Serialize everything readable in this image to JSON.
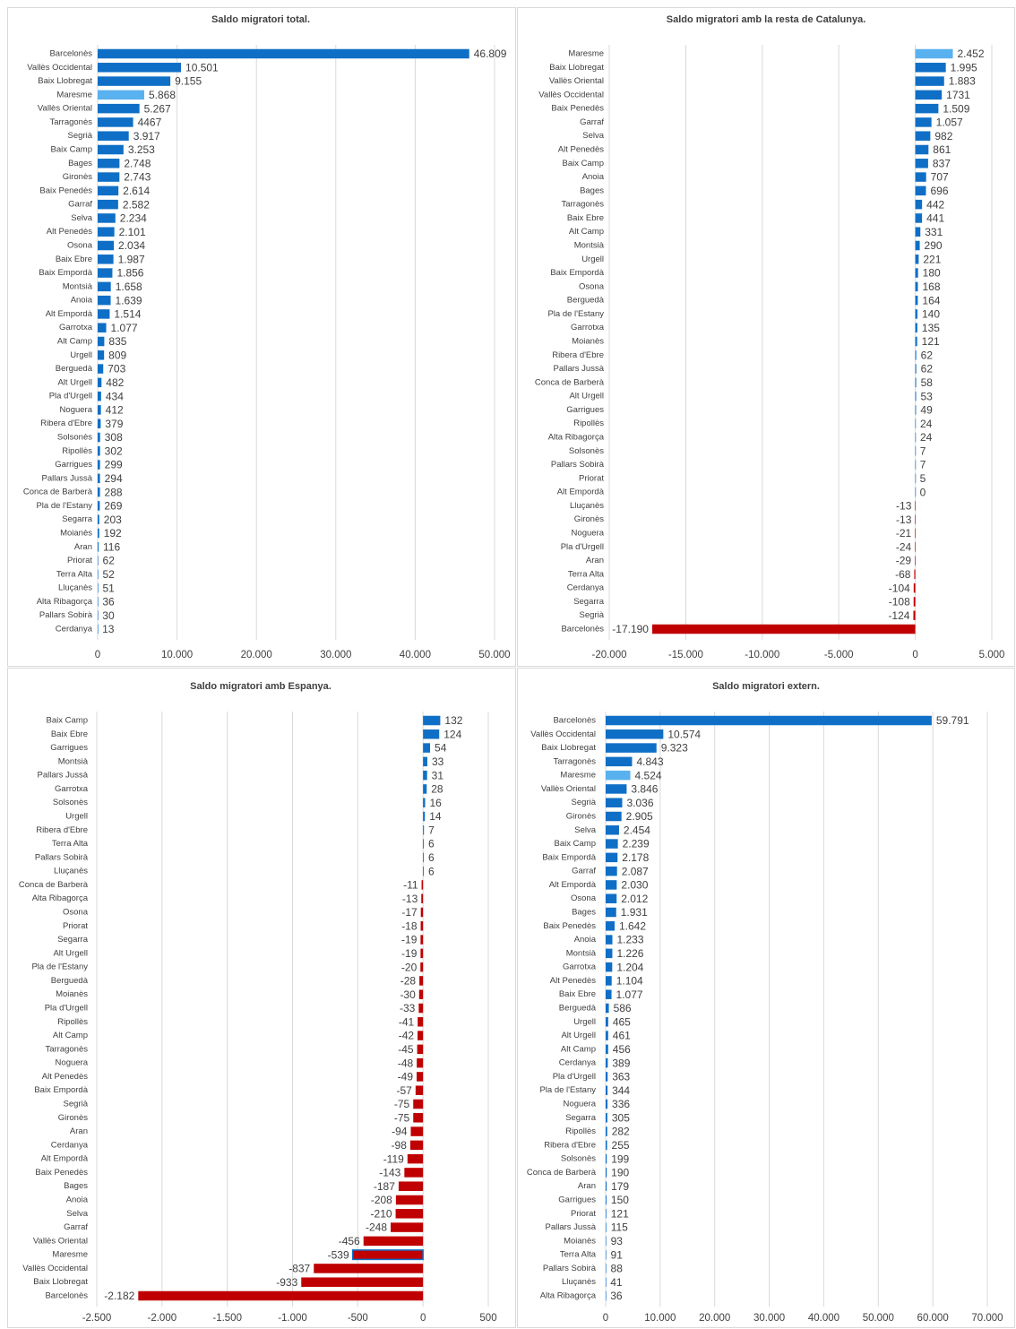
{
  "chart_data": [
    {
      "type": "bar",
      "orientation": "horizontal",
      "title": "Saldo migratori total.",
      "categories": [
        "Barcelonès",
        "Vallès Occidental",
        "Baix Llobregat",
        "Maresme",
        "Vallès Oriental",
        "Tarragonès",
        "Segrià",
        "Baix Camp",
        "Bages",
        "Gironès",
        "Baix Penedès",
        "Garraf",
        "Selva",
        "Alt Penedès",
        "Osona",
        "Baix Ebre",
        "Baix Empordà",
        "Montsià",
        "Anoia",
        "Alt Empordà",
        "Garrotxa",
        "Alt Camp",
        "Urgell",
        "Berguedà",
        "Alt Urgell",
        "Pla d'Urgell",
        "Noguera",
        "Ribera d'Ebre",
        "Solsonès",
        "Ripollès",
        "Garrigues",
        "Pallars Jussà",
        "Conca de Barberà",
        "Pla de l'Estany",
        "Segarra",
        "Moianès",
        "Aran",
        "Priorat",
        "Terra Alta",
        "Lluçanès",
        "Alta Ribagorça",
        "Pallars Sobirà",
        "Cerdanya"
      ],
      "values": [
        46809,
        10501,
        9155,
        5868,
        5267,
        4467,
        3917,
        3253,
        2748,
        2743,
        2614,
        2582,
        2234,
        2101,
        2034,
        1987,
        1856,
        1658,
        1639,
        1514,
        1077,
        835,
        809,
        703,
        482,
        434,
        412,
        379,
        308,
        302,
        299,
        294,
        288,
        269,
        203,
        192,
        116,
        62,
        52,
        51,
        36,
        30,
        13
      ],
      "value_labels": [
        "46.809",
        "10.501",
        "9.155",
        "5.868",
        "5.267",
        "4467",
        "3.917",
        "3.253",
        "2.748",
        "2.743",
        "2.614",
        "2.582",
        "2.234",
        "2.101",
        "2.034",
        "1.987",
        "1.856",
        "1.658",
        "1.639",
        "1.514",
        "1.077",
        "835",
        "809",
        "703",
        "482",
        "434",
        "412",
        "379",
        "308",
        "302",
        "299",
        "294",
        "288",
        "269",
        "203",
        "192",
        "116",
        "62",
        "52",
        "51",
        "36",
        "30",
        "13"
      ],
      "color": "#0f6fc6",
      "negative_color": "#c00000",
      "highlight": "Maresme",
      "highlight_color": "#5ab1ef",
      "xlim": [
        0,
        50000
      ],
      "xticks": [
        0,
        {
          "value": 10000,
          "label": "10.000"
        },
        {
          "value": 20000,
          "label": "20.000"
        },
        {
          "value": 30000,
          "label": "30.000"
        },
        {
          "value": 40000,
          "label": "40.000"
        },
        {
          "value": 50000,
          "label": "50.000"
        }
      ],
      "grid": true
    },
    {
      "type": "bar",
      "orientation": "horizontal",
      "title": "Saldo migratori amb la resta de Catalunya.",
      "categories": [
        "Maresme",
        "Baix Llobregat",
        "Vallès Oriental",
        "Vallès Occidental",
        "Baix Penedès",
        "Garraf",
        "Selva",
        "Alt Penedès",
        "Baix Camp",
        "Anoia",
        "Bages",
        "Tarragonès",
        "Baix Ebre",
        "Alt Camp",
        "Montsià",
        "Urgell",
        "Baix Empordà",
        "Osona",
        "Berguedà",
        "Pla de l'Estany",
        "Garrotxa",
        "Moianès",
        "Ribera d'Ebre",
        "Pallars Jussà",
        "Conca de Barberà",
        "Alt Urgell",
        "Garrigues",
        "Ripollès",
        "Alta Ribagorça",
        "Solsonès",
        "Pallars Sobirà",
        "Priorat",
        "Alt Empordà",
        "Lluçanès",
        "Gironès",
        "Noguera",
        "Pla d'Urgell",
        "Aran",
        "Terra Alta",
        "Cerdanya",
        "Segarra",
        "Segrià",
        "Barcelonès"
      ],
      "values": [
        2452,
        1995,
        1883,
        1731,
        1509,
        1057,
        982,
        861,
        837,
        707,
        696,
        442,
        441,
        331,
        290,
        221,
        180,
        168,
        164,
        140,
        135,
        121,
        62,
        62,
        58,
        53,
        49,
        24,
        24,
        7,
        7,
        5,
        0,
        -13,
        -13,
        -21,
        -24,
        -29,
        -68,
        -104,
        -108,
        -124,
        -17190
      ],
      "value_labels": [
        "2.452",
        "1.995",
        "1.883",
        "1731",
        "1.509",
        "1.057",
        "982",
        "861",
        "837",
        "707",
        "696",
        "442",
        "441",
        "331",
        "290",
        "221",
        "180",
        "168",
        "164",
        "140",
        "135",
        "121",
        "62",
        "62",
        "58",
        "53",
        "49",
        "24",
        "24",
        "7",
        "7",
        "5",
        "0",
        "-13",
        "-13",
        "-21",
        "-24",
        "-29",
        "-68",
        "-104",
        "-108",
        "-124",
        "-17.190"
      ],
      "color": "#0f6fc6",
      "negative_color": "#c00000",
      "highlight": "Maresme",
      "highlight_color": "#5ab1ef",
      "xlim": [
        -20000,
        5000
      ],
      "xticks": [
        {
          "value": -20000,
          "label": "-20.000"
        },
        {
          "value": -15000,
          "label": "-15.000"
        },
        {
          "value": -10000,
          "label": "-10.000"
        },
        {
          "value": -5000,
          "label": "-5.000"
        },
        0,
        {
          "value": 5000,
          "label": "5.000"
        }
      ],
      "grid": true
    },
    {
      "type": "bar",
      "orientation": "horizontal",
      "title": "Saldo migratori amb Espanya.",
      "categories": [
        "Baix Camp",
        "Baix Ebre",
        "Garrigues",
        "Montsià",
        "Pallars Jussà",
        "Garrotxa",
        "Solsonès",
        "Urgell",
        "Ribera d'Ebre",
        "Terra Alta",
        "Pallars Sobirà",
        "Lluçanès",
        "Conca de Barberà",
        "Alta Ribagorça",
        "Osona",
        "Priorat",
        "Segarra",
        "Alt Urgell",
        "Pla de l'Estany",
        "Berguedà",
        "Moianès",
        "Pla d'Urgell",
        "Ripollès",
        "Alt Camp",
        "Tarragonès",
        "Noguera",
        "Alt Penedès",
        "Baix Empordà",
        "Segrià",
        "Gironès",
        "Aran",
        "Cerdanya",
        "Alt Empordà",
        "Baix Penedès",
        "Bages",
        "Anoia",
        "Selva",
        "Garraf",
        "Vallès Oriental",
        "Maresme",
        "Vallès Occidental",
        "Baix Llobregat",
        "Barcelonès"
      ],
      "values": [
        132,
        124,
        54,
        33,
        31,
        28,
        16,
        14,
        7,
        6,
        6,
        6,
        -11,
        -13,
        -17,
        -18,
        -19,
        -19,
        -20,
        -28,
        -30,
        -33,
        -41,
        -42,
        -45,
        -48,
        -49,
        -57,
        -75,
        -75,
        -94,
        -98,
        -119,
        -143,
        -187,
        -208,
        -210,
        -248,
        -456,
        -539,
        -837,
        -933,
        -2182
      ],
      "value_labels": [
        "132",
        "124",
        "54",
        "33",
        "31",
        "28",
        "16",
        "14",
        "7",
        "6",
        "6",
        "6",
        "-11",
        "-13",
        "-17",
        "-18",
        "-19",
        "-19",
        "-20",
        "-28",
        "-30",
        "-33",
        "-41",
        "-42",
        "-45",
        "-48",
        "-49",
        "-57",
        "-75",
        "-75",
        "-94",
        "-98",
        "-119",
        "-143",
        "-187",
        "-208",
        "-210",
        "-248",
        "-456",
        "-539",
        "-837",
        "-933",
        "-2.182"
      ],
      "color": "#0f6fc6",
      "negative_color": "#c00000",
      "highlight": "Maresme",
      "highlight_color": "#5ab1ef",
      "xlim": [
        -2500,
        500
      ],
      "xticks": [
        {
          "value": -2500,
          "label": "-2.500"
        },
        {
          "value": -2000,
          "label": "-2.000"
        },
        {
          "value": -1500,
          "label": "-1.500"
        },
        {
          "value": -1000,
          "label": "-1.000"
        },
        -500,
        0,
        500
      ],
      "grid": true
    },
    {
      "type": "bar",
      "orientation": "horizontal",
      "title": "Saldo migratori extern.",
      "categories": [
        "Barcelonès",
        "Vallès Occidental",
        "Baix Llobregat",
        "Tarragonès",
        "Maresme",
        "Vallès Oriental",
        "Segrià",
        "Gironès",
        "Selva",
        "Baix Camp",
        "Baix Empordà",
        "Garraf",
        "Alt Empordà",
        "Osona",
        "Bages",
        "Baix Penedès",
        "Anoia",
        "Montsià",
        "Garrotxa",
        "Alt Penedès",
        "Baix Ebre",
        "Berguedà",
        "Urgell",
        "Alt Urgell",
        "Alt Camp",
        "Cerdanya",
        "Pla d'Urgell",
        "Pla de l'Estany",
        "Noguera",
        "Segarra",
        "Ripollès",
        "Ribera d'Ebre",
        "Solsonès",
        "Conca de Barberà",
        "Aran",
        "Garrigues",
        "Priorat",
        "Pallars Jussà",
        "Moianès",
        "Terra Alta",
        "Pallars Sobirà",
        "Lluçanès",
        "Alta Ribagorça"
      ],
      "values": [
        59791,
        10574,
        9323,
        4843,
        4524,
        3846,
        3036,
        2905,
        2454,
        2239,
        2178,
        2087,
        2030,
        2012,
        1931,
        1642,
        1233,
        1226,
        1204,
        1104,
        1077,
        586,
        465,
        461,
        456,
        389,
        363,
        344,
        336,
        305,
        282,
        255,
        199,
        190,
        179,
        150,
        121,
        115,
        93,
        91,
        88,
        41,
        36
      ],
      "value_labels": [
        "59.791",
        "10.574",
        "9.323",
        "4.843",
        "4.524",
        "3.846",
        "3.036",
        "2.905",
        "2.454",
        "2.239",
        "2.178",
        "2.087",
        "2.030",
        "2.012",
        "1.931",
        "1.642",
        "1.233",
        "1.226",
        "1.204",
        "1.104",
        "1.077",
        "586",
        "465",
        "461",
        "456",
        "389",
        "363",
        "344",
        "336",
        "305",
        "282",
        "255",
        "199",
        "190",
        "179",
        "150",
        "121",
        "115",
        "93",
        "91",
        "88",
        "41",
        "36"
      ],
      "color": "#0f6fc6",
      "negative_color": "#c00000",
      "highlight": "Maresme",
      "highlight_color": "#5ab1ef",
      "xlim": [
        0,
        70000
      ],
      "xticks": [
        0,
        {
          "value": 10000,
          "label": "10.000"
        },
        {
          "value": 20000,
          "label": "20.000"
        },
        {
          "value": 30000,
          "label": "30.000"
        },
        {
          "value": 40000,
          "label": "40.000"
        },
        {
          "value": 50000,
          "label": "50.000"
        },
        {
          "value": 60000,
          "label": "60.000"
        },
        {
          "value": 70000,
          "label": "70.000"
        }
      ],
      "grid": true
    }
  ]
}
